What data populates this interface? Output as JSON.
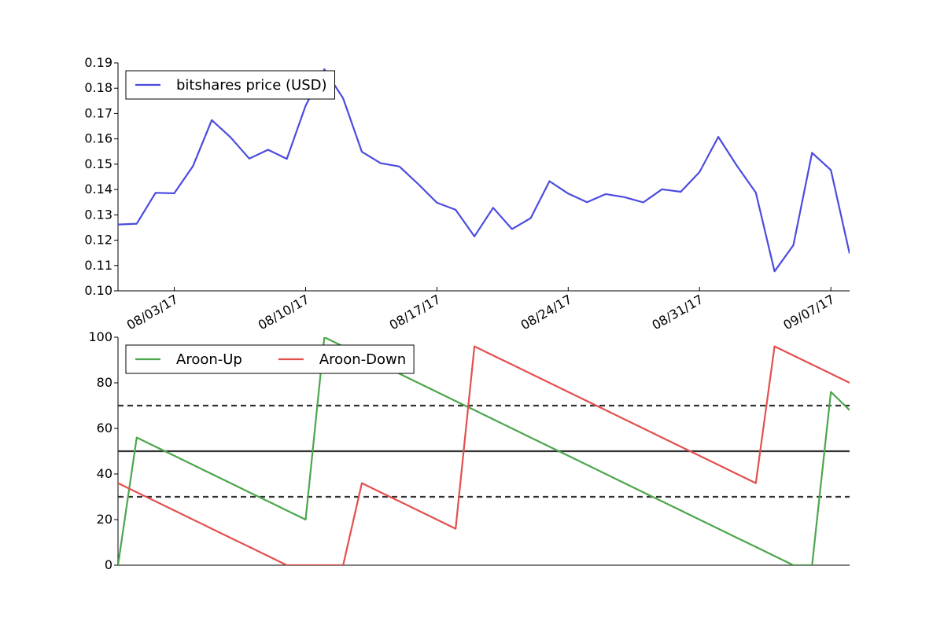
{
  "chart_data": [
    {
      "type": "line",
      "title": "",
      "xlabel": "",
      "ylabel": "",
      "x": [
        "07/31/17",
        "08/01/17",
        "08/02/17",
        "08/03/17",
        "08/04/17",
        "08/05/17",
        "08/06/17",
        "08/07/17",
        "08/08/17",
        "08/09/17",
        "08/10/17",
        "08/11/17",
        "08/12/17",
        "08/13/17",
        "08/14/17",
        "08/15/17",
        "08/16/17",
        "08/17/17",
        "08/18/17",
        "08/19/17",
        "08/20/17",
        "08/21/17",
        "08/22/17",
        "08/23/17",
        "08/24/17",
        "08/25/17",
        "08/26/17",
        "08/27/17",
        "08/28/17",
        "08/29/17",
        "08/30/17",
        "08/31/17",
        "09/01/17",
        "09/02/17",
        "09/03/17",
        "09/04/17",
        "09/05/17",
        "09/06/17",
        "09/07/17",
        "09/08/17"
      ],
      "x_tick_labels": [
        "08/03/17",
        "08/10/17",
        "08/17/17",
        "08/24/17",
        "08/31/17",
        "09/07/17"
      ],
      "ylim": [
        0.1,
        0.19
      ],
      "y_ticks": [
        "0.10",
        "0.11",
        "0.12",
        "0.13",
        "0.14",
        "0.15",
        "0.16",
        "0.17",
        "0.18",
        "0.19"
      ],
      "legend_position": "top-left",
      "grid": false,
      "series": [
        {
          "name": "bitshares price (USD)",
          "color": "#4b4be0",
          "values": [
            0.1262,
            0.1265,
            0.1387,
            0.1385,
            0.1493,
            0.1674,
            0.1606,
            0.1522,
            0.1557,
            0.1521,
            0.1731,
            0.1875,
            0.176,
            0.1549,
            0.1504,
            0.1491,
            0.1422,
            0.1348,
            0.132,
            0.1215,
            0.1328,
            0.1244,
            0.1287,
            0.1433,
            0.1384,
            0.135,
            0.1382,
            0.137,
            0.1349,
            0.1401,
            0.1391,
            0.1469,
            0.1608,
            0.1493,
            0.1388,
            0.1077,
            0.118,
            0.1545,
            0.1477,
            0.1147
          ]
        }
      ]
    },
    {
      "type": "line",
      "title": "",
      "xlabel": "",
      "ylabel": "",
      "ylim": [
        0,
        100
      ],
      "y_ticks": [
        "0",
        "20",
        "40",
        "60",
        "80",
        "100"
      ],
      "legend_position": "top-left",
      "grid": false,
      "reference_lines": [
        {
          "value": 30,
          "style": "dashed",
          "color": "#333333"
        },
        {
          "value": 50,
          "style": "solid",
          "color": "#333333"
        },
        {
          "value": 70,
          "style": "dashed",
          "color": "#333333"
        }
      ],
      "series": [
        {
          "name": "Aroon-Up",
          "color": "#4ca64c",
          "values": [
            0,
            56,
            52,
            48,
            44,
            40,
            36,
            32,
            28,
            24,
            20,
            100,
            96,
            92,
            88,
            84,
            80,
            76,
            72,
            68,
            64,
            60,
            56,
            52,
            48,
            44,
            40,
            36,
            32,
            28,
            24,
            20,
            16,
            12,
            8,
            4,
            0,
            0,
            76,
            68
          ]
        },
        {
          "name": "Aroon-Down",
          "color": "#e34f4f",
          "values": [
            36,
            32,
            28,
            24,
            20,
            16,
            12,
            8,
            4,
            0,
            0,
            0,
            0,
            36,
            32,
            28,
            24,
            20,
            16,
            96,
            92,
            88,
            84,
            80,
            76,
            72,
            68,
            64,
            60,
            56,
            52,
            48,
            44,
            40,
            36,
            96,
            92,
            88,
            84,
            80
          ]
        }
      ]
    }
  ]
}
